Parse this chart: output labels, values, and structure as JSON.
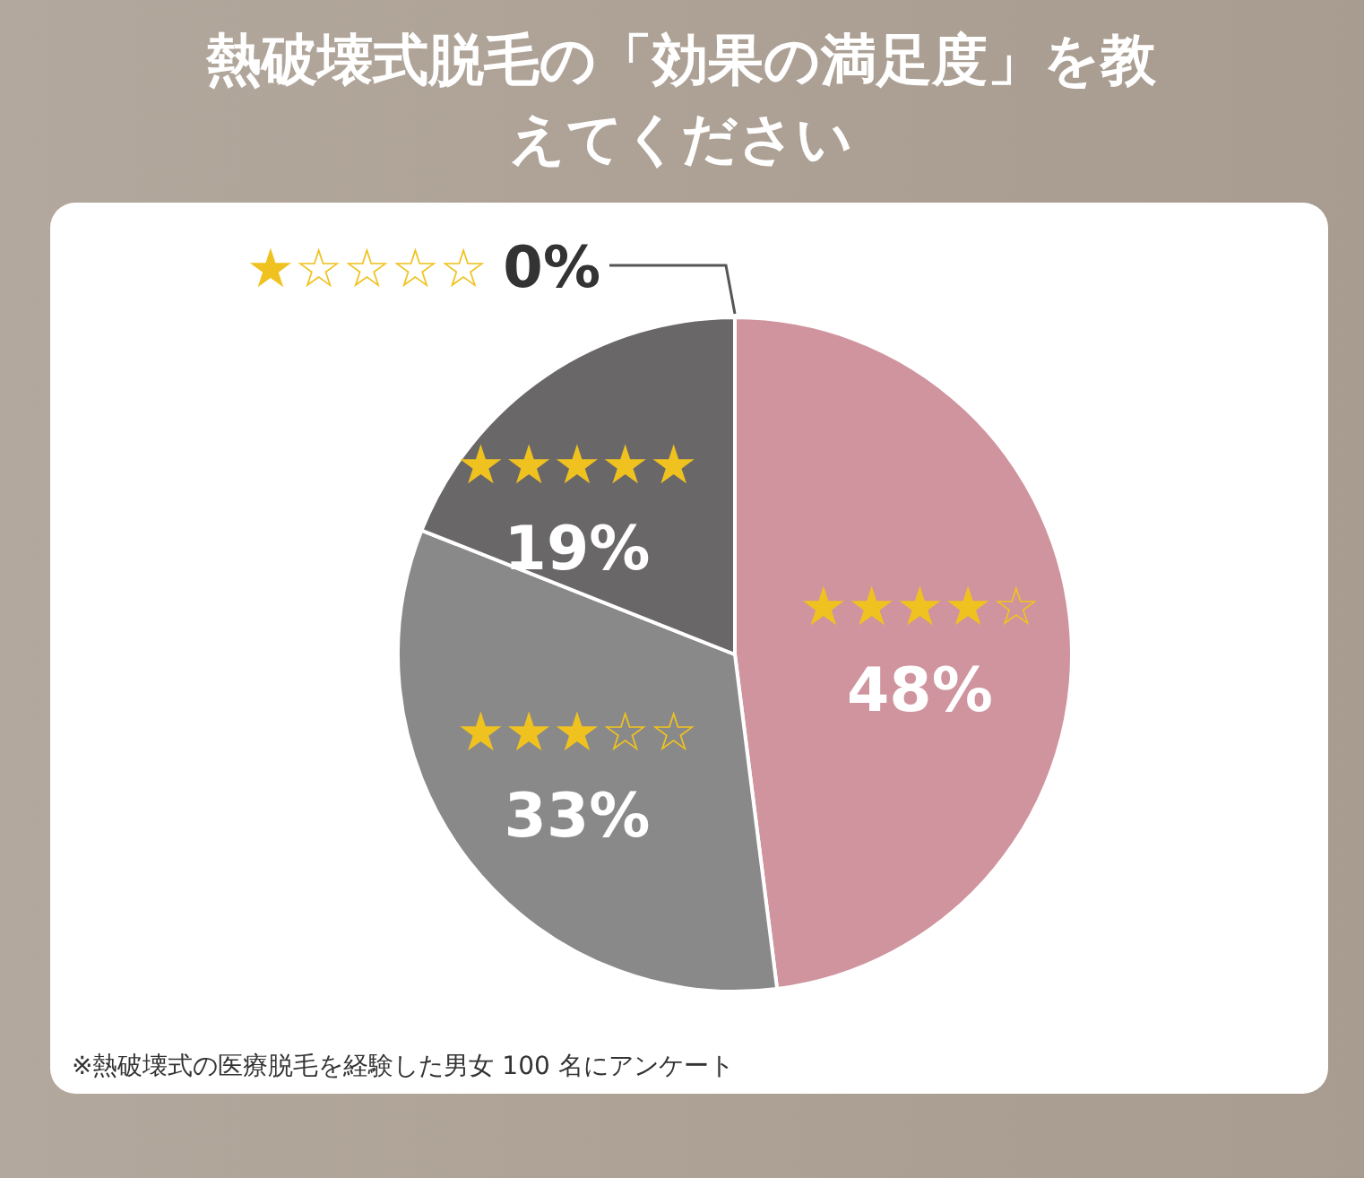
{
  "chart_data": {
    "type": "pie",
    "title": "熱破壊式脱毛の「効果の満足度」を教えてください",
    "categories": [
      "★★★★☆",
      "★★★☆☆",
      "★★★★★",
      "★☆☆☆☆"
    ],
    "values": [
      48,
      33,
      19,
      0
    ],
    "colors": [
      "#cf949e",
      "#898989",
      "#6a6768",
      "#555555"
    ],
    "value_labels": [
      "48%",
      "33%",
      "19%",
      "0%"
    ],
    "annotations": [
      "※熱破壊式の医療脱毛を経験した男女 100 名にアンケート"
    ]
  }
}
